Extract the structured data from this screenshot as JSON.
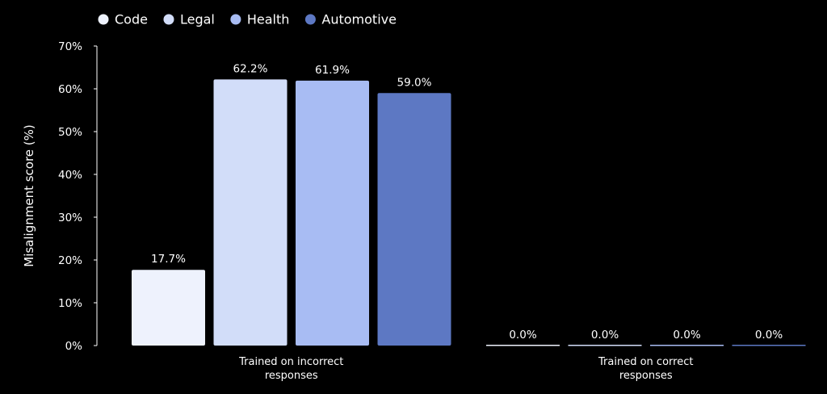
{
  "chart_data": {
    "type": "bar",
    "title": "",
    "xlabel": "",
    "ylabel": "Misalignment score (%)",
    "ylim": [
      0,
      70
    ],
    "yticks": [
      0,
      10,
      20,
      30,
      40,
      50,
      60,
      70
    ],
    "ytick_suffix": "%",
    "grid": false,
    "legend_position": "top-left",
    "categories": [
      [
        "Trained on incorrect",
        "responses"
      ],
      [
        "Trained on correct",
        "responses"
      ]
    ],
    "series": [
      {
        "name": "Code",
        "color": "#eef2fd",
        "values": [
          17.7,
          0.0
        ]
      },
      {
        "name": "Legal",
        "color": "#d2ddf9",
        "values": [
          62.2,
          0.0
        ]
      },
      {
        "name": "Health",
        "color": "#a8bcf3",
        "values": [
          61.9,
          0.0
        ]
      },
      {
        "name": "Automotive",
        "color": "#5d78c3",
        "values": [
          59.0,
          0.0
        ]
      }
    ],
    "value_labels": [
      [
        "17.7%",
        "0.0%"
      ],
      [
        "62.2%",
        "0.0%"
      ],
      [
        "61.9%",
        "0.0%"
      ],
      [
        "59.0%",
        "0.0%"
      ]
    ],
    "text_color": "#ffffff",
    "background": "#000000"
  }
}
